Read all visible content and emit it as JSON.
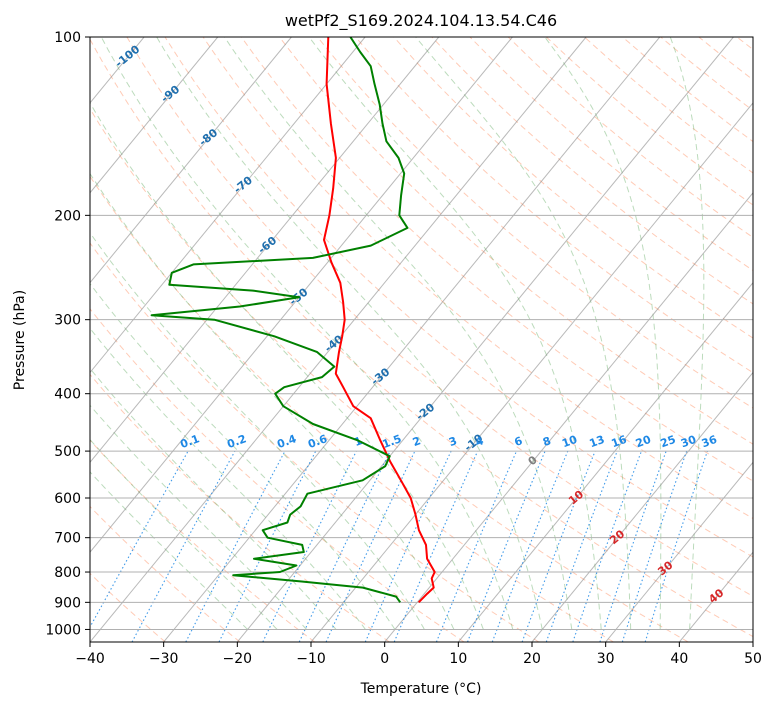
{
  "chart_data": {
    "type": "line",
    "title": "wetPf2_S169.2024.104.13.54.C46",
    "xlabel": "Temperature (°C)",
    "ylabel": "Pressure (hPa)",
    "xlim": [
      -40,
      50
    ],
    "ylim": [
      1050,
      100
    ],
    "y_scale": "log",
    "skew": true,
    "grid": true,
    "x_ticks": [
      -40,
      -30,
      -20,
      -10,
      0,
      10,
      20,
      30,
      40,
      50
    ],
    "x_tick_labels": [
      "−40",
      "−30",
      "−20",
      "−10",
      "0",
      "10",
      "20",
      "30",
      "40",
      "50"
    ],
    "y_ticks": [
      1000,
      900,
      800,
      700,
      600,
      500,
      400,
      300,
      200,
      100
    ],
    "y_tick_labels": [
      "1000",
      "900",
      "800",
      "700",
      "600",
      "500",
      "400",
      "300",
      "200",
      "100"
    ],
    "colors": {
      "temperature": "#ff0000",
      "dewpoint": "#008000",
      "dry_adiabat": "#ffa07a",
      "moist_adiabat": "#6aaf6a",
      "mixing_ratio": "#1e88e5",
      "isotherm": "#808080",
      "isotherm_label": "#1f6fae",
      "warm_isotherm_label": "#d62728",
      "zero_isotherm": "#808080",
      "mixing_label": "#1e88e5"
    },
    "series": [
      {
        "key": "temperature",
        "points": [
          [
            900,
            0.2
          ],
          [
            870,
            0.4
          ],
          [
            850,
            0.6
          ],
          [
            820,
            -0.7
          ],
          [
            800,
            -1.0
          ],
          [
            760,
            -3.5
          ],
          [
            720,
            -5.2
          ],
          [
            680,
            -7.8
          ],
          [
            640,
            -10.0
          ],
          [
            600,
            -12.5
          ],
          [
            560,
            -15.8
          ],
          [
            520,
            -19.4
          ],
          [
            480,
            -23.0
          ],
          [
            440,
            -26.8
          ],
          [
            420,
            -30.5
          ],
          [
            390,
            -34.0
          ],
          [
            370,
            -36.5
          ],
          [
            340,
            -38.5
          ],
          [
            320,
            -39.8
          ],
          [
            300,
            -41.3
          ],
          [
            280,
            -43.5
          ],
          [
            260,
            -46.0
          ],
          [
            240,
            -49.5
          ],
          [
            220,
            -53.0
          ],
          [
            200,
            -55.0
          ],
          [
            180,
            -57.5
          ],
          [
            160,
            -60.5
          ],
          [
            140,
            -65.0
          ],
          [
            120,
            -70.0
          ],
          [
            100,
            -75.0
          ]
        ]
      },
      {
        "key": "dewpoint",
        "points": [
          [
            900,
            -2.3
          ],
          [
            880,
            -3.5
          ],
          [
            850,
            -9.0
          ],
          [
            830,
            -18.0
          ],
          [
            810,
            -28.0
          ],
          [
            800,
            -22.0
          ],
          [
            780,
            -20.5
          ],
          [
            760,
            -27.0
          ],
          [
            740,
            -21.0
          ],
          [
            720,
            -22.0
          ],
          [
            700,
            -27.5
          ],
          [
            680,
            -29.0
          ],
          [
            660,
            -26.5
          ],
          [
            640,
            -27.0
          ],
          [
            620,
            -26.5
          ],
          [
            590,
            -27.0
          ],
          [
            560,
            -21.0
          ],
          [
            530,
            -19.5
          ],
          [
            510,
            -20.0
          ],
          [
            480,
            -26.0
          ],
          [
            450,
            -34.0
          ],
          [
            420,
            -40.0
          ],
          [
            400,
            -42.5
          ],
          [
            390,
            -42.0
          ],
          [
            375,
            -38.0
          ],
          [
            360,
            -37.5
          ],
          [
            340,
            -41.5
          ],
          [
            320,
            -49.0
          ],
          [
            300,
            -59.0
          ],
          [
            295,
            -68.0
          ],
          [
            285,
            -57.0
          ],
          [
            275,
            -50.0
          ],
          [
            268,
            -57.0
          ],
          [
            262,
            -69.0
          ],
          [
            250,
            -70.0
          ],
          [
            242,
            -68.0
          ],
          [
            236,
            -52.5
          ],
          [
            225,
            -46.0
          ],
          [
            210,
            -43.0
          ],
          [
            200,
            -45.5
          ],
          [
            185,
            -47.5
          ],
          [
            170,
            -49.5
          ],
          [
            160,
            -52.0
          ],
          [
            150,
            -55.5
          ],
          [
            140,
            -58.0
          ],
          [
            130,
            -60.5
          ],
          [
            120,
            -63.5
          ],
          [
            112,
            -66.0
          ],
          [
            106,
            -69.0
          ],
          [
            100,
            -72.0
          ]
        ]
      }
    ],
    "annotations": {
      "isotherm_labels": [
        "-100",
        "-90",
        "-80",
        "-70",
        "-60",
        "-50",
        "-40",
        "-30",
        "-20",
        "-10",
        "0",
        "10",
        "20",
        "30",
        "40"
      ],
      "mixing_ratio_labels": [
        "0.1",
        "0.2",
        "0.4",
        "0.6",
        "1",
        "1.5",
        "2",
        "3",
        "4",
        "6",
        "8",
        "10",
        "13",
        "16",
        "20",
        "25",
        "30",
        "36"
      ]
    }
  }
}
